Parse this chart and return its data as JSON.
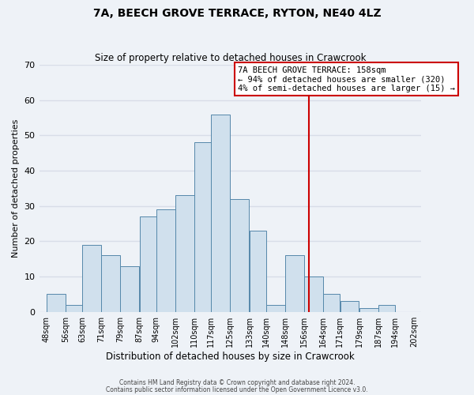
{
  "title": "7A, BEECH GROVE TERRACE, RYTON, NE40 4LZ",
  "subtitle": "Size of property relative to detached houses in Crawcrook",
  "xlabel": "Distribution of detached houses by size in Crawcrook",
  "ylabel": "Number of detached properties",
  "bar_labels": [
    "48sqm",
    "56sqm",
    "63sqm",
    "71sqm",
    "79sqm",
    "87sqm",
    "94sqm",
    "102sqm",
    "110sqm",
    "117sqm",
    "125sqm",
    "133sqm",
    "140sqm",
    "148sqm",
    "156sqm",
    "164sqm",
    "171sqm",
    "179sqm",
    "187sqm",
    "194sqm",
    "202sqm"
  ],
  "bar_values": [
    5,
    2,
    19,
    16,
    13,
    27,
    29,
    33,
    48,
    56,
    32,
    23,
    2,
    16,
    10,
    5,
    3,
    1,
    2,
    0
  ],
  "bar_color": "#d0e0ed",
  "bar_edge_color": "#5588aa",
  "ylim": [
    0,
    70
  ],
  "yticks": [
    0,
    10,
    20,
    30,
    40,
    50,
    60,
    70
  ],
  "ref_line_x": 158,
  "ref_line_color": "#cc0000",
  "annotation_title": "7A BEECH GROVE TERRACE: 158sqm",
  "annotation_line1": "← 94% of detached houses are smaller (320)",
  "annotation_line2": "4% of semi-detached houses are larger (15) →",
  "annotation_box_color": "#ffffff",
  "annotation_box_edge_color": "#cc0000",
  "footer1": "Contains HM Land Registry data © Crown copyright and database right 2024.",
  "footer2": "Contains public sector information licensed under the Open Government Licence v3.0.",
  "background_color": "#eef2f7",
  "grid_color": "#d8dde8",
  "bin_edges": [
    48,
    56,
    63,
    71,
    79,
    87,
    94,
    102,
    110,
    117,
    125,
    133,
    140,
    148,
    156,
    164,
    171,
    179,
    187,
    194,
    202
  ]
}
